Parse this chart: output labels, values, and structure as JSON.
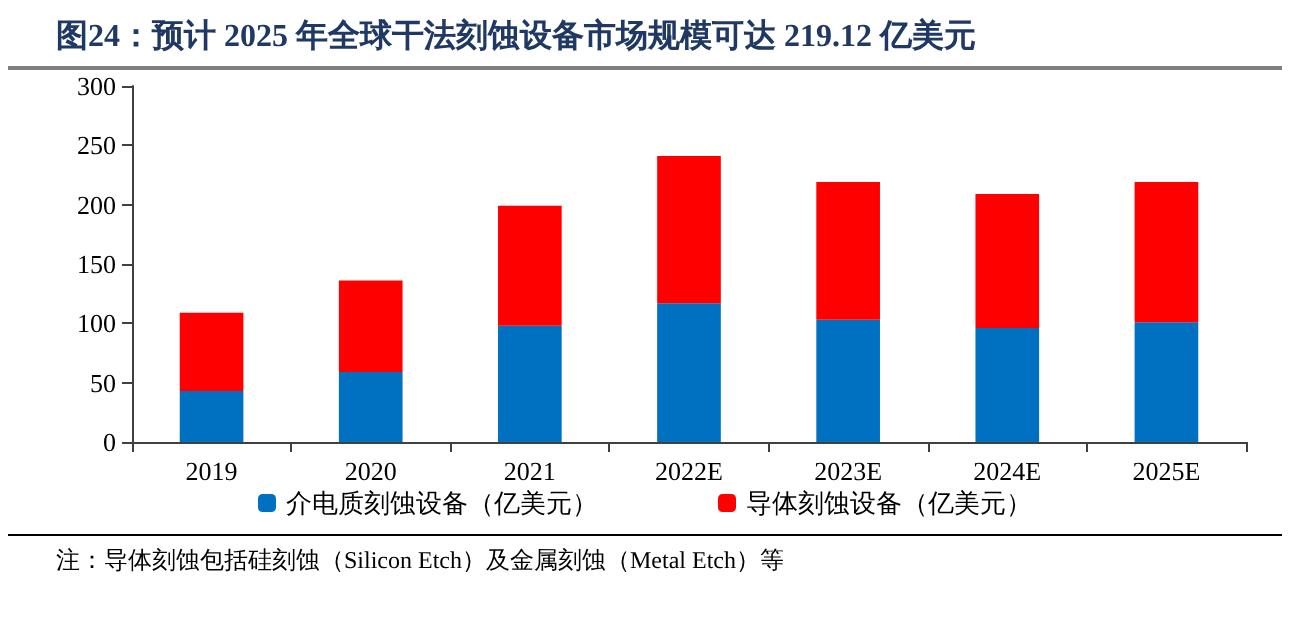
{
  "chart_data": {
    "type": "bar",
    "title": "图24：预计 2025 年全球干法刻蚀设备市场规模可达 219.12 亿美元",
    "categories": [
      "2019",
      "2020",
      "2021",
      "2022E",
      "2023E",
      "2024E",
      "2025E"
    ],
    "stacked": true,
    "series": [
      {
        "name": "介电质刻蚀设备（亿美元）",
        "color": "#0070c0",
        "values": [
          43,
          59,
          98,
          117,
          103,
          96,
          101
        ]
      },
      {
        "name": "导体刻蚀设备（亿美元）",
        "color": "#ff0000",
        "values": [
          66,
          77,
          101,
          124,
          116,
          113,
          118
        ]
      }
    ],
    "ylim": [
      0,
      300
    ],
    "yticks": [
      0,
      50,
      100,
      150,
      200,
      250,
      300
    ],
    "grid": false,
    "legend": "bottom",
    "annotations": [
      "注：导体刻蚀包括硅刻蚀（Silicon Etch）及金属刻蚀（Metal Etch）等"
    ]
  }
}
